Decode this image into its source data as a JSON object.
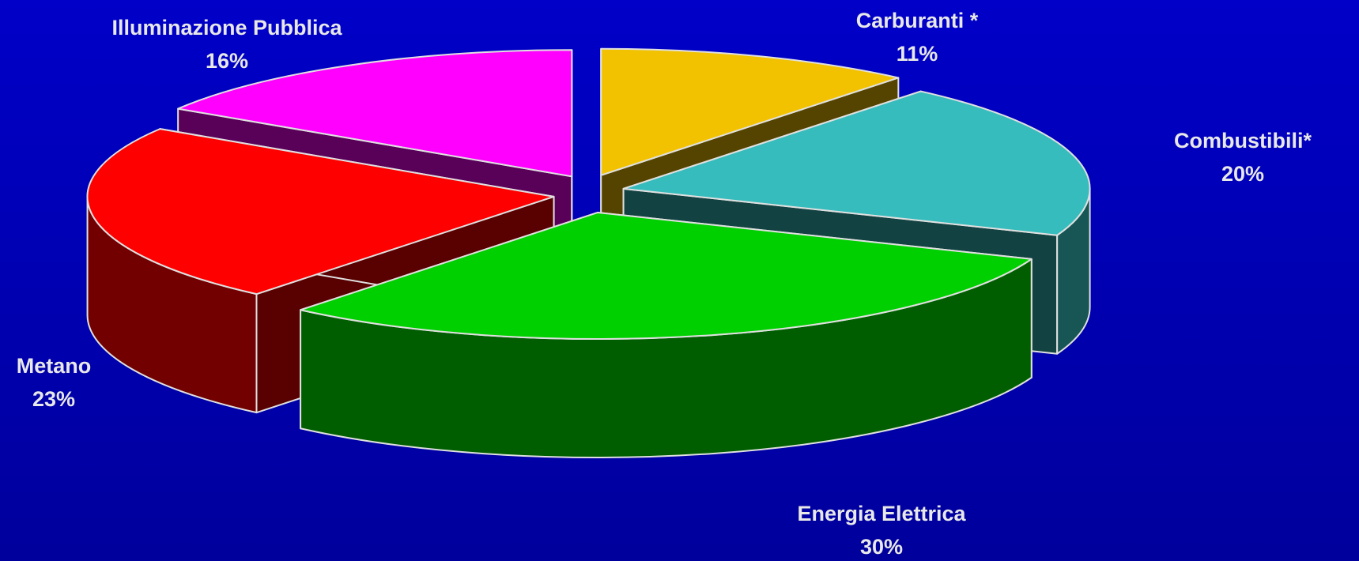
{
  "chart_data": {
    "type": "pie",
    "categories": [
      "Carburanti *",
      "Combustibili*",
      "Energia Elettrica",
      "Metano",
      "Illuminazione Pubblica"
    ],
    "values": [
      11,
      20,
      30,
      23,
      16
    ],
    "value_labels": [
      "11%",
      "20%",
      "30%",
      "23%",
      "16%"
    ],
    "colors": [
      "#f2c200",
      "#36bcbc",
      "#00d000",
      "#ff0000",
      "#ff00ff"
    ]
  }
}
